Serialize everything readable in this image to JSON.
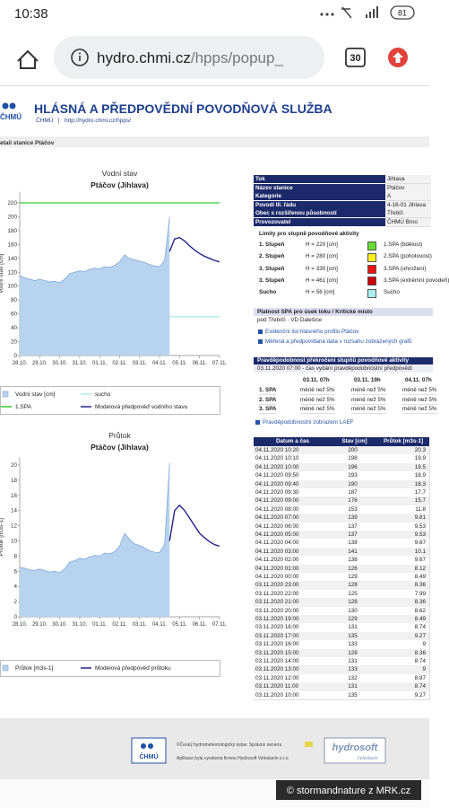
{
  "status_bar": {
    "time": "10:38",
    "battery": "81"
  },
  "browser": {
    "url_host": "hydro.chmi.cz",
    "url_path": "/hpps/popup_",
    "tabs": "30"
  },
  "header": {
    "logo": "ČHMÚ",
    "title": "HLÁSNÁ A PŘEDPOVĚDNÍ POVODŇOVÁ SLUŽBA",
    "subtitle": "ČHMÚ   |   http://hydro.chmi.cz/hpps/"
  },
  "section_title": "etail stanice Ptáčov",
  "chart_data": [
    {
      "type": "line",
      "title": "Vodní stav",
      "subtitle": "Ptáčov (Jihlava)",
      "y_label": "Vodní stav [cm]",
      "categories": [
        "28.10.",
        null,
        null,
        null,
        "29.10.",
        null,
        null,
        null,
        "30.10.",
        null,
        null,
        null,
        "31.10.",
        null,
        null,
        null,
        "01.11.",
        null,
        null,
        null,
        "02.11.",
        null,
        null,
        null,
        "03.11.",
        null,
        null,
        null,
        "04.11.",
        null,
        null,
        null,
        "05.11.",
        null,
        null,
        null,
        "06.11.",
        null,
        null,
        null,
        "07.11."
      ],
      "series": [
        {
          "name": "Vodní stav [cm]",
          "color": "#b7d3ee",
          "line_color": "#7fa8d8",
          "area": true,
          "values": [
            115,
            112,
            110,
            108,
            110,
            108,
            106,
            107,
            105,
            110,
            118,
            120,
            122,
            121,
            124,
            126,
            125,
            128,
            127,
            130,
            135,
            145,
            140,
            138,
            136,
            134,
            131,
            129,
            128,
            137,
            200,
            null,
            null,
            null,
            null,
            null,
            null,
            null,
            null,
            null,
            null
          ]
        },
        {
          "name": "Modelová předpověď vodního stavu",
          "color": "#23238a",
          "values": [
            null,
            null,
            null,
            null,
            null,
            null,
            null,
            null,
            null,
            null,
            null,
            null,
            null,
            null,
            null,
            null,
            null,
            null,
            null,
            null,
            null,
            null,
            null,
            null,
            null,
            null,
            null,
            null,
            null,
            null,
            150,
            168,
            170,
            165,
            158,
            152,
            147,
            143,
            140,
            137,
            135
          ]
        }
      ],
      "reference_lines": [
        {
          "name": "1.SPA",
          "value": 220,
          "color": "#33cc33"
        },
        {
          "name": "sucho",
          "value": 56,
          "color": "#a8eaea"
        }
      ],
      "ylim": [
        0,
        236
      ],
      "yticks": [
        0,
        20,
        40,
        60,
        80,
        100,
        120,
        140,
        160,
        180,
        200,
        220
      ],
      "grid": false
    },
    {
      "type": "line",
      "title": "Průtok",
      "subtitle": "Ptáčov (Jihlava)",
      "y_label": "Průtok [m3s-1]",
      "categories": [
        "28.10.",
        null,
        null,
        null,
        "29.10.",
        null,
        null,
        null,
        "30.10.",
        null,
        null,
        null,
        "31.10.",
        null,
        null,
        null,
        "01.11.",
        null,
        null,
        null,
        "02.11.",
        null,
        null,
        null,
        "03.11.",
        null,
        null,
        null,
        "04.11.",
        null,
        null,
        null,
        "05.11.",
        null,
        null,
        null,
        "06.11.",
        null,
        null,
        null,
        "07.11."
      ],
      "series": [
        {
          "name": "Průtok  [m3s-1]",
          "color": "#b7d3ee",
          "line_color": "#7fa8d8",
          "area": true,
          "values": [
            6.5,
            6.4,
            6.2,
            6.1,
            6.3,
            6.1,
            5.9,
            6.0,
            5.8,
            6.3,
            7.2,
            7.4,
            7.7,
            7.6,
            7.9,
            8.1,
            8.0,
            8.4,
            8.3,
            8.6,
            9.3,
            11,
            10.2,
            9.6,
            9.4,
            9.1,
            8.7,
            8.5,
            8.49,
            9.53,
            20.3,
            null,
            null,
            null,
            null,
            null,
            null,
            null,
            null,
            null,
            null
          ]
        },
        {
          "name": "Modelová předpověď průtoku",
          "color": "#23238a",
          "values": [
            null,
            null,
            null,
            null,
            null,
            null,
            null,
            null,
            null,
            null,
            null,
            null,
            null,
            null,
            null,
            null,
            null,
            null,
            null,
            null,
            null,
            null,
            null,
            null,
            null,
            null,
            null,
            null,
            null,
            null,
            10,
            14,
            14.7,
            14,
            13,
            12,
            11,
            10.4,
            9.9,
            9.5,
            9.3
          ]
        }
      ],
      "reference_lines": [],
      "ylim": [
        0,
        21
      ],
      "yticks": [
        0,
        2,
        4,
        6,
        8,
        10,
        12,
        14,
        16,
        18,
        20
      ],
      "grid": false
    }
  ],
  "station_info": {
    "rows": [
      [
        "Tok",
        "Jihlava"
      ],
      [
        "Název stanice",
        "Ptáčov"
      ],
      [
        "Kategorie",
        "A"
      ],
      [
        "Povodí III. řádu",
        "4-16-01 Jihlava"
      ],
      [
        "Obec s rozšířenou působností",
        "Třebíč"
      ],
      [
        "Provozovatel",
        "ČHMÚ Brno"
      ]
    ]
  },
  "limits": {
    "title": "Limity pro stupně povodňové aktivity",
    "rows": [
      {
        "level": "1. Stupeň",
        "height": "H = 220 [cm]",
        "label": "1.SPA (bdělost)",
        "color": "#66dd33"
      },
      {
        "level": "2. Stupeň",
        "height": "H = 280 [cm]",
        "label": "2.SPA (pohotovost)",
        "color": "#ffee22"
      },
      {
        "level": "3. Stupeň",
        "height": "H = 330 [cm]",
        "label": "3.SPA (ohrožení)",
        "color": "#ee1111"
      },
      {
        "level": "3. Stupeň",
        "height": "H = 461 [cm]",
        "label": "3.SPA (extrémní povodeň)",
        "color": "#cc0000"
      },
      {
        "level": "Sucho",
        "height": "H = 56 [cm]",
        "label": "Sucho",
        "color": "#aaeeee"
      }
    ]
  },
  "validity": {
    "title": "Platnost SPA pro úsek toku / Kritické místo",
    "text": "pod Třebíčí - VD Dalešice",
    "links": [
      "Evidenční list hlásného profilu Ptáčov",
      "Měřená a předpovídaná data v rozsahu zobrazených grafů"
    ]
  },
  "probability": {
    "title": "Pravděpodobnost překročení stupňů povodňové aktivity",
    "subtitle": "03.11.2020 07:00 - čas vydání pravděpodobnostní předpovědi",
    "columns": [
      "03.11. 07h",
      "03.11. 19h",
      "04.11. 07h"
    ],
    "rows": [
      [
        "1. SPA",
        "méně než 5%",
        "méně než 5%",
        "méně než 5%"
      ],
      [
        "2. SPA",
        "méně než 5%",
        "méně než 5%",
        "méně než 5%"
      ],
      [
        "3. SPA",
        "méně než 5%",
        "méně než 5%",
        "méně než 5%"
      ]
    ]
  },
  "laef_link": "Pravděpodobnostní zobrazení LAEF",
  "data_table": {
    "columns": [
      "Datum a čas",
      "Stav [cm]",
      "Průtok [m3s-1]"
    ],
    "rows": [
      [
        "04.11.2020 10:20",
        200,
        20.3
      ],
      [
        "04.11.2020 10:10",
        198,
        19.9
      ],
      [
        "04.11.2020 10:00",
        196,
        19.5
      ],
      [
        "04.11.2020 09:50",
        193,
        18.9
      ],
      [
        "04.11.2020 09:40",
        190,
        18.3
      ],
      [
        "04.11.2020 09:30",
        187,
        17.7
      ],
      [
        "04.11.2020 09:00",
        176,
        15.7
      ],
      [
        "04.11.2020 08:00",
        153,
        11.8
      ],
      [
        "04.11.2020 07:00",
        139,
        9.81
      ],
      [
        "04.11.2020 06:00",
        137,
        9.53
      ],
      [
        "04.11.2020 05:00",
        137,
        9.53
      ],
      [
        "04.11.2020 04:00",
        138,
        9.67
      ],
      [
        "04.11.2020 03:00",
        141,
        10.1
      ],
      [
        "04.11.2020 02:00",
        138,
        9.67
      ],
      [
        "04.11.2020 01:00",
        126,
        8.12
      ],
      [
        "04.11.2020 00:00",
        129,
        8.49
      ],
      [
        "03.11.2020 23:00",
        128,
        8.36
      ],
      [
        "03.11.2020 22:00",
        125,
        7.99
      ],
      [
        "03.11.2020 21:00",
        128,
        8.36
      ],
      [
        "03.11.2020 20:00",
        130,
        8.62
      ],
      [
        "03.11.2020 19:00",
        129,
        8.49
      ],
      [
        "03.11.2020 18:00",
        131,
        8.74
      ],
      [
        "03.11.2020 17:00",
        135,
        9.27
      ],
      [
        "03.11.2020 16:00",
        133,
        9
      ],
      [
        "03.11.2020 15:00",
        128,
        8.36
      ],
      [
        "03.11.2020 14:00",
        131,
        8.74
      ],
      [
        "03.11.2020 13:00",
        133,
        9
      ],
      [
        "03.11.2020 12:00",
        132,
        8.87
      ],
      [
        "03.11.2020 11:00",
        131,
        8.74
      ],
      [
        "03.11.2020 10:00",
        135,
        9.27
      ]
    ]
  },
  "footer": {
    "logo_left": "ČHMÚ",
    "line1": "©Český hydrometeorologický ústav. Správce serveru",
    "line2": "Aplikace byla vyrobena firmou Hydrosoft Veleslavín s.r.o.",
    "logo_right": "hydrosoft",
    "logo_right_sub": "Veleslavín"
  },
  "watermark": "© stormandnature z MRK.cz"
}
